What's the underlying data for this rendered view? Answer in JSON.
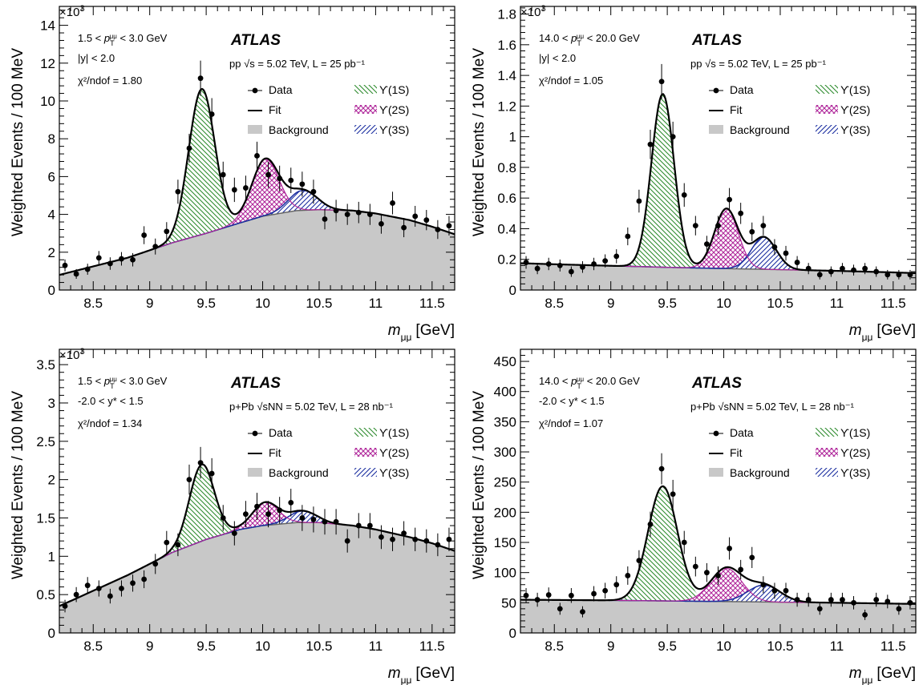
{
  "chart_data": [
    {
      "type": "line",
      "experiment": "ATLAS",
      "ylabel": "Weighted Events / 100 MeV",
      "xlabel_main": "m",
      "xlabel_sub": "μμ",
      "xlabel_unit": "[GeV]",
      "y_multiplier_base": "×10",
      "y_multiplier_exp": "3",
      "xlim": [
        8.2,
        11.7
      ],
      "ylim": [
        0,
        15
      ],
      "x_ticks": [
        8.5,
        9,
        9.5,
        10,
        10.5,
        11,
        11.5
      ],
      "y_ticks": [
        0,
        2,
        4,
        6,
        8,
        10,
        12,
        14
      ],
      "info": {
        "pt_lo": "1.5 < ",
        "pt_var": "p",
        "pt_sup": "μμ",
        "pt_sub": "T",
        "pt_hi": " < 3.0 GeV",
        "rap": "|y| < 2.0",
        "chi2": "χ²/ndof = 1.80",
        "system": "pp √s = 5.02 TeV, L = 25 pb⁻¹"
      },
      "legend": {
        "data": "Data",
        "fit": "Fit",
        "bkg": "Background",
        "s1": "ϒ(1S)",
        "s2": "ϒ(2S)",
        "s3": "ϒ(3S)"
      },
      "model": {
        "bkg": [
          [
            8.2,
            0.8
          ],
          [
            8.5,
            1.25
          ],
          [
            8.8,
            1.7
          ],
          [
            9.0,
            2.1
          ],
          [
            9.2,
            2.5
          ],
          [
            9.5,
            3.0
          ],
          [
            9.8,
            3.55
          ],
          [
            10.0,
            3.9
          ],
          [
            10.3,
            4.2
          ],
          [
            10.5,
            4.25
          ],
          [
            10.8,
            4.2
          ],
          [
            11.0,
            4.05
          ],
          [
            11.3,
            3.7
          ],
          [
            11.5,
            3.35
          ],
          [
            11.7,
            2.95
          ]
        ],
        "amps": [
          7.7,
          3.0,
          1.05
        ],
        "width": 0.115
      },
      "points": [
        [
          8.25,
          1.3
        ],
        [
          8.35,
          0.85
        ],
        [
          8.45,
          1.1
        ],
        [
          8.55,
          1.7
        ],
        [
          8.65,
          1.4
        ],
        [
          8.75,
          1.65
        ],
        [
          8.85,
          1.6
        ],
        [
          8.95,
          2.9
        ],
        [
          9.05,
          2.3
        ],
        [
          9.15,
          3.1
        ],
        [
          9.25,
          5.2
        ],
        [
          9.35,
          7.5
        ],
        [
          9.45,
          11.2
        ],
        [
          9.55,
          9.3
        ],
        [
          9.65,
          6.1
        ],
        [
          9.75,
          5.3
        ],
        [
          9.85,
          5.4
        ],
        [
          9.95,
          7.1
        ],
        [
          10.05,
          6.1
        ],
        [
          10.15,
          5.9
        ],
        [
          10.25,
          5.8
        ],
        [
          10.35,
          5.6
        ],
        [
          10.45,
          5.2
        ],
        [
          10.55,
          3.75
        ],
        [
          10.65,
          4.2
        ],
        [
          10.75,
          4.0
        ],
        [
          10.85,
          4.1
        ],
        [
          10.95,
          4.0
        ],
        [
          11.05,
          3.5
        ],
        [
          11.15,
          4.6
        ],
        [
          11.25,
          3.3
        ],
        [
          11.35,
          3.9
        ],
        [
          11.45,
          3.7
        ],
        [
          11.55,
          3.2
        ],
        [
          11.65,
          3.4
        ]
      ]
    },
    {
      "type": "line",
      "experiment": "ATLAS",
      "ylabel": "Weighted Events / 100 MeV",
      "xlabel_main": "m",
      "xlabel_sub": "μμ",
      "xlabel_unit": "[GeV]",
      "y_multiplier_base": "×10",
      "y_multiplier_exp": "3",
      "xlim": [
        8.2,
        11.7
      ],
      "ylim": [
        0,
        1.85
      ],
      "x_ticks": [
        8.5,
        9,
        9.5,
        10,
        10.5,
        11,
        11.5
      ],
      "y_ticks": [
        0,
        0.2,
        0.4,
        0.6,
        0.8,
        1,
        1.2,
        1.4,
        1.6,
        1.8
      ],
      "info": {
        "pt_lo": "14.0 < ",
        "pt_var": "p",
        "pt_sup": "μμ",
        "pt_sub": "T",
        "pt_hi": " < 20.0 GeV",
        "rap": "|y| < 2.0",
        "chi2": "χ²/ndof = 1.05",
        "system": "pp √s = 5.02 TeV, L = 25 pb⁻¹"
      },
      "legend": {
        "data": "Data",
        "fit": "Fit",
        "bkg": "Background",
        "s1": "ϒ(1S)",
        "s2": "ϒ(2S)",
        "s3": "ϒ(3S)"
      },
      "model": {
        "bkg": [
          [
            8.2,
            0.175
          ],
          [
            8.5,
            0.168
          ],
          [
            9.0,
            0.158
          ],
          [
            9.5,
            0.148
          ],
          [
            10.0,
            0.14
          ],
          [
            10.5,
            0.133
          ],
          [
            11.0,
            0.125
          ],
          [
            11.5,
            0.115
          ],
          [
            11.7,
            0.11
          ]
        ],
        "amps": [
          1.13,
          0.39,
          0.21
        ],
        "width": 0.1
      },
      "points": [
        [
          8.25,
          0.18
        ],
        [
          8.35,
          0.14
        ],
        [
          8.45,
          0.17
        ],
        [
          8.55,
          0.16
        ],
        [
          8.65,
          0.12
        ],
        [
          8.75,
          0.15
        ],
        [
          8.85,
          0.17
        ],
        [
          8.95,
          0.19
        ],
        [
          9.05,
          0.22
        ],
        [
          9.15,
          0.35
        ],
        [
          9.25,
          0.58
        ],
        [
          9.35,
          0.95
        ],
        [
          9.45,
          1.36
        ],
        [
          9.55,
          1.0
        ],
        [
          9.65,
          0.62
        ],
        [
          9.75,
          0.42
        ],
        [
          9.85,
          0.3
        ],
        [
          9.95,
          0.42
        ],
        [
          10.05,
          0.59
        ],
        [
          10.15,
          0.5
        ],
        [
          10.25,
          0.38
        ],
        [
          10.35,
          0.42
        ],
        [
          10.45,
          0.28
        ],
        [
          10.55,
          0.24
        ],
        [
          10.65,
          0.18
        ],
        [
          10.75,
          0.14
        ],
        [
          10.85,
          0.1
        ],
        [
          10.95,
          0.12
        ],
        [
          11.05,
          0.14
        ],
        [
          11.15,
          0.13
        ],
        [
          11.25,
          0.14
        ],
        [
          11.35,
          0.12
        ],
        [
          11.45,
          0.1
        ],
        [
          11.55,
          0.1
        ],
        [
          11.65,
          0.1
        ]
      ]
    },
    {
      "type": "line",
      "experiment": "ATLAS",
      "ylabel": "Weighted Events / 100 MeV",
      "xlabel_main": "m",
      "xlabel_sub": "μμ",
      "xlabel_unit": "[GeV]",
      "y_multiplier_base": "×10",
      "y_multiplier_exp": "3",
      "xlim": [
        8.2,
        11.7
      ],
      "ylim": [
        0,
        3.7
      ],
      "x_ticks": [
        8.5,
        9,
        9.5,
        10,
        10.5,
        11,
        11.5
      ],
      "y_ticks": [
        0,
        0.5,
        1,
        1.5,
        2,
        2.5,
        3,
        3.5
      ],
      "info": {
        "pt_lo": "1.5 < ",
        "pt_var": "p",
        "pt_sup": "μμ",
        "pt_sub": "T",
        "pt_hi": " < 3.0 GeV",
        "rap": "-2.0 < y* < 1.5",
        "chi2": "χ²/ndof = 1.34",
        "system": "p+Pb √sNN = 5.02 TeV, L = 28 nb⁻¹"
      },
      "legend": {
        "data": "Data",
        "fit": "Fit",
        "bkg": "Background",
        "s1": "ϒ(1S)",
        "s2": "ϒ(2S)",
        "s3": "ϒ(3S)"
      },
      "model": {
        "bkg": [
          [
            8.2,
            0.35
          ],
          [
            8.5,
            0.55
          ],
          [
            8.8,
            0.75
          ],
          [
            9.0,
            0.9
          ],
          [
            9.2,
            1.05
          ],
          [
            9.5,
            1.22
          ],
          [
            9.8,
            1.35
          ],
          [
            10.0,
            1.4
          ],
          [
            10.3,
            1.44
          ],
          [
            10.5,
            1.44
          ],
          [
            10.8,
            1.4
          ],
          [
            11.0,
            1.35
          ],
          [
            11.3,
            1.25
          ],
          [
            11.5,
            1.17
          ],
          [
            11.7,
            1.07
          ]
        ],
        "amps": [
          1.0,
          0.3,
          0.15
        ],
        "width": 0.11
      },
      "points": [
        [
          8.25,
          0.35
        ],
        [
          8.35,
          0.5
        ],
        [
          8.45,
          0.62
        ],
        [
          8.55,
          0.58
        ],
        [
          8.65,
          0.48
        ],
        [
          8.75,
          0.58
        ],
        [
          8.85,
          0.65
        ],
        [
          8.95,
          0.7
        ],
        [
          9.05,
          0.9
        ],
        [
          9.15,
          1.18
        ],
        [
          9.25,
          1.15
        ],
        [
          9.35,
          2.0
        ],
        [
          9.45,
          2.22
        ],
        [
          9.55,
          2.08
        ],
        [
          9.65,
          1.5
        ],
        [
          9.75,
          1.3
        ],
        [
          9.85,
          1.55
        ],
        [
          9.95,
          1.65
        ],
        [
          10.05,
          1.55
        ],
        [
          10.15,
          1.6
        ],
        [
          10.25,
          1.7
        ],
        [
          10.35,
          1.5
        ],
        [
          10.45,
          1.48
        ],
        [
          10.55,
          1.45
        ],
        [
          10.65,
          1.45
        ],
        [
          10.75,
          1.2
        ],
        [
          10.85,
          1.4
        ],
        [
          10.95,
          1.4
        ],
        [
          11.05,
          1.25
        ],
        [
          11.15,
          1.22
        ],
        [
          11.25,
          1.3
        ],
        [
          11.35,
          1.22
        ],
        [
          11.45,
          1.2
        ],
        [
          11.55,
          1.15
        ],
        [
          11.65,
          1.22
        ]
      ]
    },
    {
      "type": "line",
      "experiment": "ATLAS",
      "ylabel": "Weighted Events / 100 MeV",
      "xlabel_main": "m",
      "xlabel_sub": "μμ",
      "xlabel_unit": "[GeV]",
      "y_multiplier_base": "",
      "y_multiplier_exp": "",
      "xlim": [
        8.2,
        11.7
      ],
      "ylim": [
        0,
        470
      ],
      "x_ticks": [
        8.5,
        9,
        9.5,
        10,
        10.5,
        11,
        11.5
      ],
      "y_ticks": [
        0,
        50,
        100,
        150,
        200,
        250,
        300,
        350,
        400,
        450
      ],
      "info": {
        "pt_lo": "14.0 < ",
        "pt_var": "p",
        "pt_sup": "μμ",
        "pt_sub": "T",
        "pt_hi": " < 20.0 GeV",
        "rap": "-2.0 < y* < 1.5",
        "chi2": "χ²/ndof = 1.07",
        "system": "p+Pb √sNN = 5.02 TeV, L = 28 nb⁻¹"
      },
      "legend": {
        "data": "Data",
        "fit": "Fit",
        "bkg": "Background",
        "s1": "ϒ(1S)",
        "s2": "ϒ(2S)",
        "s3": "ϒ(3S)"
      },
      "model": {
        "bkg": [
          [
            8.2,
            55
          ],
          [
            9.0,
            54
          ],
          [
            9.5,
            53
          ],
          [
            10.0,
            52
          ],
          [
            10.5,
            51
          ],
          [
            11.0,
            50
          ],
          [
            11.7,
            48
          ]
        ],
        "amps": [
          190,
          55,
          28
        ],
        "width": 0.13
      },
      "points": [
        [
          8.25,
          62
        ],
        [
          8.35,
          55
        ],
        [
          8.45,
          63
        ],
        [
          8.55,
          40
        ],
        [
          8.65,
          62
        ],
        [
          8.75,
          35
        ],
        [
          8.85,
          65
        ],
        [
          8.95,
          70
        ],
        [
          9.05,
          80
        ],
        [
          9.15,
          95
        ],
        [
          9.25,
          120
        ],
        [
          9.35,
          180
        ],
        [
          9.45,
          272
        ],
        [
          9.55,
          230
        ],
        [
          9.65,
          150
        ],
        [
          9.75,
          110
        ],
        [
          9.85,
          100
        ],
        [
          9.95,
          95
        ],
        [
          10.05,
          140
        ],
        [
          10.15,
          105
        ],
        [
          10.25,
          125
        ],
        [
          10.35,
          80
        ],
        [
          10.45,
          70
        ],
        [
          10.55,
          70
        ],
        [
          10.65,
          55
        ],
        [
          10.75,
          55
        ],
        [
          10.85,
          40
        ],
        [
          10.95,
          55
        ],
        [
          11.05,
          55
        ],
        [
          11.15,
          50
        ],
        [
          11.25,
          30
        ],
        [
          11.35,
          55
        ],
        [
          11.45,
          52
        ],
        [
          11.55,
          40
        ],
        [
          11.65,
          50
        ]
      ]
    }
  ]
}
